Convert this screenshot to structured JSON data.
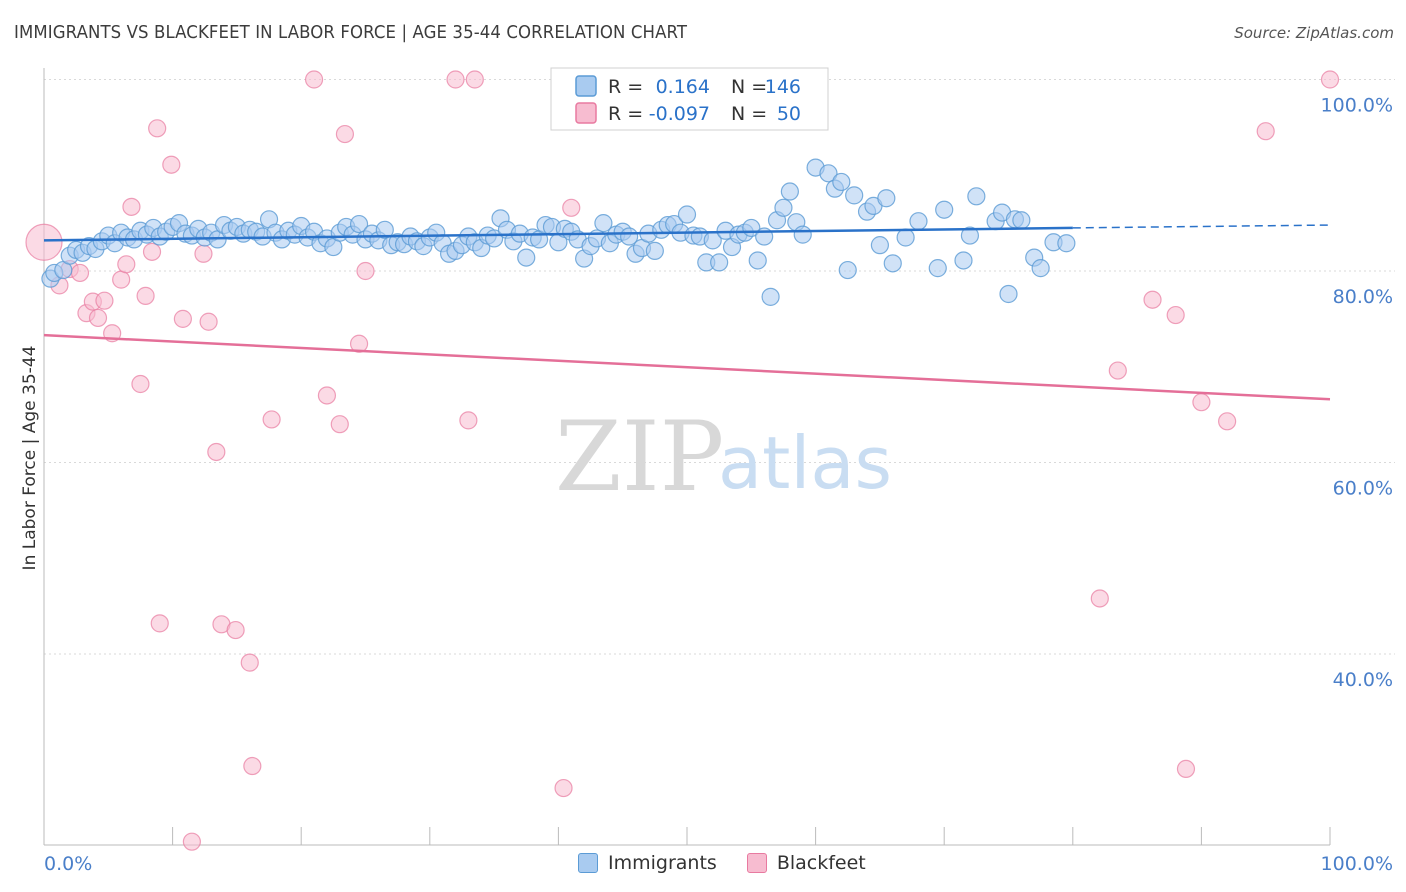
{
  "title": "IMMIGRANTS VS BLACKFEET IN LABOR FORCE | AGE 35-44 CORRELATION CHART",
  "source": "Source: ZipAtlas.com",
  "watermark": {
    "zip": "ZIP",
    "atlas": "atlas"
  },
  "colors": {
    "blue": "#5b9bd5",
    "blue_fill": "#a9cbf0",
    "blue_line": "#2a72c9",
    "pink": "#e87aa0",
    "pink_fill": "#f7bcd0",
    "pink_line": "#e46f98",
    "axis_text": "#4a7fc9",
    "grid": "#d9d9d9"
  },
  "legend_top": {
    "rows": [
      {
        "r_label": "R =",
        "r_value": "0.164",
        "n_label": "N =",
        "n_value": "146",
        "color": "blue"
      },
      {
        "r_label": "R =",
        "r_value": "-0.097",
        "n_label": "N =",
        "n_value": "50",
        "color": "pink"
      }
    ]
  },
  "legend_bottom": [
    {
      "label": "Immigrants",
      "color": "blue"
    },
    {
      "label": "Blackfeet",
      "color": "pink"
    }
  ],
  "chart_data": {
    "type": "scatter",
    "title": "IMMIGRANTS VS BLACKFEET IN LABOR FORCE | AGE 35-44 CORRELATION CHART",
    "xlabel": "",
    "ylabel": "In Labor Force | Age 35-44",
    "xlim": [
      0,
      100
    ],
    "ylim": [
      20,
      102
    ],
    "x_tick_labels": [
      "0.0%",
      "100.0%"
    ],
    "y_ticks": [
      40,
      60,
      80,
      100
    ],
    "y_tick_labels": [
      "40.0%",
      "60.0%",
      "80.0%",
      "100.0%"
    ],
    "grid": true,
    "legend": "top-center",
    "series": [
      {
        "name": "Immigrants",
        "color": "blue",
        "trend": {
          "x": [
            0,
            80
          ],
          "y": [
            83.2,
            84.5
          ],
          "dashed_to": [
            100,
            84.8
          ]
        },
        "points": [
          [
            0.5,
            79.2
          ],
          [
            0.8,
            79.8
          ],
          [
            1.5,
            80.1
          ],
          [
            2.0,
            81.6
          ],
          [
            2.5,
            82.2
          ],
          [
            3.0,
            81.9
          ],
          [
            3.5,
            82.6
          ],
          [
            4.0,
            82.3
          ],
          [
            4.5,
            83.1
          ],
          [
            5.0,
            83.7
          ],
          [
            5.5,
            82.9
          ],
          [
            6.0,
            84.0
          ],
          [
            6.5,
            83.5
          ],
          [
            7.0,
            83.3
          ],
          [
            7.5,
            84.2
          ],
          [
            8.0,
            83.8
          ],
          [
            8.5,
            84.5
          ],
          [
            9.0,
            83.6
          ],
          [
            9.5,
            84.1
          ],
          [
            10.0,
            84.6
          ],
          [
            10.5,
            85.0
          ],
          [
            11.0,
            83.9
          ],
          [
            11.5,
            83.7
          ],
          [
            12.0,
            84.4
          ],
          [
            12.5,
            83.5
          ],
          [
            13.0,
            84.0
          ],
          [
            13.5,
            83.3
          ],
          [
            14.0,
            84.8
          ],
          [
            14.5,
            84.2
          ],
          [
            15.0,
            84.6
          ],
          [
            15.5,
            83.9
          ],
          [
            16.0,
            84.3
          ],
          [
            16.5,
            84.1
          ],
          [
            17.0,
            83.6
          ],
          [
            17.5,
            85.4
          ],
          [
            18.0,
            84.0
          ],
          [
            18.5,
            83.3
          ],
          [
            19.0,
            84.2
          ],
          [
            19.5,
            83.8
          ],
          [
            20.0,
            84.7
          ],
          [
            20.5,
            83.5
          ],
          [
            21.0,
            84.1
          ],
          [
            21.5,
            82.9
          ],
          [
            22.0,
            83.4
          ],
          [
            22.5,
            82.5
          ],
          [
            23.0,
            84.0
          ],
          [
            23.5,
            84.6
          ],
          [
            24.0,
            83.8
          ],
          [
            24.5,
            84.9
          ],
          [
            25.0,
            83.3
          ],
          [
            25.5,
            83.9
          ],
          [
            26.0,
            83.2
          ],
          [
            26.5,
            84.3
          ],
          [
            27.0,
            82.7
          ],
          [
            27.5,
            83.0
          ],
          [
            28.0,
            82.8
          ],
          [
            28.5,
            83.6
          ],
          [
            29.0,
            83.1
          ],
          [
            29.5,
            82.6
          ],
          [
            30.0,
            83.5
          ],
          [
            30.5,
            84.0
          ],
          [
            31.0,
            82.9
          ],
          [
            31.5,
            81.8
          ],
          [
            32.0,
            82.1
          ],
          [
            32.5,
            82.7
          ],
          [
            33.0,
            83.6
          ],
          [
            33.5,
            83.0
          ],
          [
            34.0,
            82.4
          ],
          [
            34.5,
            83.7
          ],
          [
            35.0,
            83.4
          ],
          [
            35.5,
            85.5
          ],
          [
            36.0,
            84.3
          ],
          [
            36.5,
            83.1
          ],
          [
            37.0,
            83.9
          ],
          [
            37.5,
            81.4
          ],
          [
            38.0,
            83.5
          ],
          [
            38.5,
            83.3
          ],
          [
            39.0,
            84.8
          ],
          [
            39.5,
            84.6
          ],
          [
            40.0,
            83.0
          ],
          [
            40.5,
            84.4
          ],
          [
            41.0,
            84.1
          ],
          [
            41.5,
            83.3
          ],
          [
            42.0,
            81.3
          ],
          [
            42.5,
            82.6
          ],
          [
            43.0,
            83.4
          ],
          [
            43.5,
            85.0
          ],
          [
            44.0,
            82.9
          ],
          [
            44.5,
            83.8
          ],
          [
            45.0,
            84.1
          ],
          [
            45.5,
            83.6
          ],
          [
            46.0,
            81.8
          ],
          [
            46.5,
            82.4
          ],
          [
            47.0,
            83.9
          ],
          [
            47.5,
            82.1
          ],
          [
            48.0,
            84.3
          ],
          [
            48.5,
            84.8
          ],
          [
            49.0,
            84.9
          ],
          [
            49.5,
            84.0
          ],
          [
            50.0,
            85.9
          ],
          [
            50.5,
            83.7
          ],
          [
            51.0,
            83.6
          ],
          [
            51.5,
            80.9
          ],
          [
            52.0,
            83.2
          ],
          [
            52.5,
            80.9
          ],
          [
            53.0,
            84.2
          ],
          [
            53.5,
            82.5
          ],
          [
            54.0,
            83.8
          ],
          [
            54.5,
            84.0
          ],
          [
            55.0,
            84.5
          ],
          [
            55.5,
            81.1
          ],
          [
            56.0,
            83.6
          ],
          [
            56.5,
            77.3
          ],
          [
            57.0,
            85.3
          ],
          [
            57.5,
            86.6
          ],
          [
            58.0,
            88.3
          ],
          [
            58.5,
            85.1
          ],
          [
            59.0,
            83.8
          ],
          [
            60.0,
            90.8
          ],
          [
            61.0,
            90.2
          ],
          [
            61.5,
            88.6
          ],
          [
            62.0,
            89.3
          ],
          [
            62.5,
            80.1
          ],
          [
            63.0,
            87.9
          ],
          [
            64.0,
            86.2
          ],
          [
            64.5,
            86.8
          ],
          [
            65.0,
            82.7
          ],
          [
            65.5,
            87.6
          ],
          [
            66.0,
            80.8
          ],
          [
            67.0,
            83.5
          ],
          [
            68.0,
            85.2
          ],
          [
            69.5,
            80.3
          ],
          [
            70.0,
            86.4
          ],
          [
            71.5,
            81.1
          ],
          [
            72.0,
            83.7
          ],
          [
            72.5,
            87.8
          ],
          [
            74.0,
            85.2
          ],
          [
            74.5,
            86.1
          ],
          [
            75.0,
            77.6
          ],
          [
            75.5,
            85.4
          ],
          [
            76.0,
            85.3
          ],
          [
            77.0,
            81.4
          ],
          [
            77.5,
            80.3
          ],
          [
            78.5,
            83.0
          ],
          [
            79.5,
            82.9
          ]
        ]
      },
      {
        "name": "Blackfeet",
        "color": "pink",
        "trend": {
          "x": [
            0,
            100
          ],
          "y": [
            73.3,
            66.6
          ]
        },
        "points": [
          [
            0.0,
            83.0
          ],
          [
            1.2,
            78.5
          ],
          [
            2.0,
            80.2
          ],
          [
            2.8,
            79.8
          ],
          [
            3.3,
            75.6
          ],
          [
            3.8,
            76.8
          ],
          [
            4.2,
            75.1
          ],
          [
            4.7,
            76.9
          ],
          [
            5.3,
            73.5
          ],
          [
            6.0,
            79.1
          ],
          [
            6.4,
            80.7
          ],
          [
            6.8,
            86.7
          ],
          [
            7.5,
            68.2
          ],
          [
            7.9,
            77.4
          ],
          [
            8.4,
            82.0
          ],
          [
            8.8,
            94.9
          ],
          [
            9.0,
            43.2
          ],
          [
            9.9,
            91.1
          ],
          [
            10.8,
            75.0
          ],
          [
            11.5,
            20.4
          ],
          [
            12.4,
            81.8
          ],
          [
            12.8,
            74.7
          ],
          [
            13.4,
            61.1
          ],
          [
            13.8,
            43.1
          ],
          [
            14.9,
            42.5
          ],
          [
            16.0,
            39.1
          ],
          [
            16.2,
            28.3
          ],
          [
            17.7,
            64.5
          ],
          [
            21.0,
            100.0
          ],
          [
            22.0,
            67.0
          ],
          [
            23.0,
            64.0
          ],
          [
            23.4,
            94.3
          ],
          [
            24.5,
            72.4
          ],
          [
            25.0,
            80.0
          ],
          [
            32.0,
            100.0
          ],
          [
            33.0,
            64.4
          ],
          [
            33.5,
            100.0
          ],
          [
            40.4,
            26.0
          ],
          [
            41.0,
            86.6
          ],
          [
            82.1,
            45.8
          ],
          [
            83.5,
            69.6
          ],
          [
            86.2,
            77.0
          ],
          [
            88.0,
            75.4
          ],
          [
            88.8,
            28.0
          ],
          [
            90.0,
            66.3
          ],
          [
            92.0,
            64.3
          ],
          [
            95.0,
            94.6
          ],
          [
            100.0,
            100.0
          ]
        ]
      }
    ]
  }
}
